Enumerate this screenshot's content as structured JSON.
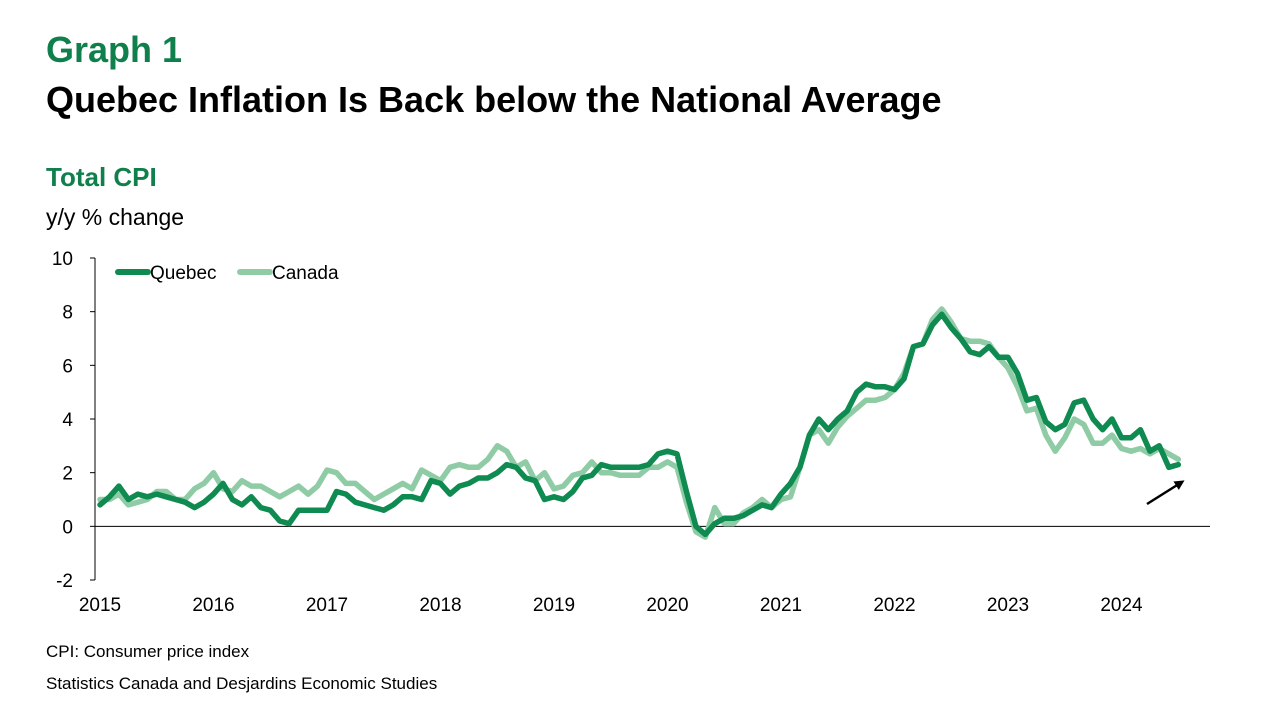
{
  "header": {
    "kicker": "Graph 1",
    "title": "Quebec Inflation Is Back below the National Average"
  },
  "chart_header": {
    "subtitle": "Total CPI",
    "units": "y/y % change"
  },
  "footer": {
    "note": "CPI: Consumer price index",
    "source": "Statistics Canada and Desjardins Economic Studies"
  },
  "colors": {
    "quebec": "#0f8a50",
    "canada": "#8fcca6",
    "title_green": "#0f7f4b",
    "arrow": "#000000"
  },
  "chart_data": {
    "type": "line",
    "title": "Total CPI",
    "ylabel": "y/y % change",
    "ylim": [
      -2,
      10
    ],
    "yticks": [
      -2,
      0,
      2,
      4,
      6,
      8,
      10
    ],
    "xlim": [
      2015,
      2024.75
    ],
    "xticks": [
      "2015",
      "2016",
      "2017",
      "2018",
      "2019",
      "2020",
      "2021",
      "2022",
      "2023",
      "2024"
    ],
    "grid": false,
    "legend": "top-left",
    "annotation": "upward arrow pointing to latest Quebec value",
    "series": [
      {
        "name": "Quebec",
        "start": "2015-01",
        "frequency": "monthly",
        "values": [
          0.8,
          1.1,
          1.5,
          1.0,
          1.2,
          1.1,
          1.2,
          1.1,
          1.0,
          0.9,
          0.7,
          0.9,
          1.2,
          1.6,
          1.0,
          0.8,
          1.1,
          0.7,
          0.6,
          0.2,
          0.1,
          0.6,
          0.6,
          0.6,
          0.6,
          1.3,
          1.2,
          0.9,
          0.8,
          0.7,
          0.6,
          0.8,
          1.1,
          1.1,
          1.0,
          1.7,
          1.6,
          1.2,
          1.5,
          1.6,
          1.8,
          1.8,
          2.0,
          2.3,
          2.2,
          1.8,
          1.7,
          1.0,
          1.1,
          1.0,
          1.3,
          1.8,
          1.9,
          2.3,
          2.2,
          2.2,
          2.2,
          2.2,
          2.3,
          2.7,
          2.8,
          2.7,
          1.3,
          0.0,
          -0.3,
          0.1,
          0.3,
          0.3,
          0.4,
          0.6,
          0.8,
          0.7,
          1.2,
          1.6,
          2.2,
          3.4,
          4.0,
          3.6,
          4.0,
          4.3,
          5.0,
          5.3,
          5.2,
          5.2,
          5.1,
          5.5,
          6.7,
          6.8,
          7.5,
          7.9,
          7.4,
          7.0,
          6.5,
          6.4,
          6.7,
          6.3,
          6.3,
          5.7,
          4.7,
          4.8,
          3.9,
          3.6,
          3.8,
          4.6,
          4.7,
          4.0,
          3.6,
          4.0,
          3.3,
          3.3,
          3.6,
          2.8,
          3.0,
          2.2,
          2.3
        ]
      },
      {
        "name": "Canada",
        "start": "2015-01",
        "frequency": "monthly",
        "values": [
          1.0,
          1.0,
          1.2,
          0.8,
          0.9,
          1.0,
          1.3,
          1.3,
          1.0,
          1.0,
          1.4,
          1.6,
          2.0,
          1.4,
          1.3,
          1.7,
          1.5,
          1.5,
          1.3,
          1.1,
          1.3,
          1.5,
          1.2,
          1.5,
          2.1,
          2.0,
          1.6,
          1.6,
          1.3,
          1.0,
          1.2,
          1.4,
          1.6,
          1.4,
          2.1,
          1.9,
          1.7,
          2.2,
          2.3,
          2.2,
          2.2,
          2.5,
          3.0,
          2.8,
          2.2,
          2.4,
          1.7,
          2.0,
          1.4,
          1.5,
          1.9,
          2.0,
          2.4,
          2.0,
          2.0,
          1.9,
          1.9,
          1.9,
          2.2,
          2.2,
          2.4,
          2.2,
          0.9,
          -0.2,
          -0.4,
          0.7,
          0.1,
          0.1,
          0.5,
          0.7,
          1.0,
          0.7,
          1.0,
          1.1,
          2.2,
          3.4,
          3.6,
          3.1,
          3.7,
          4.1,
          4.4,
          4.7,
          4.7,
          4.8,
          5.1,
          5.7,
          6.7,
          6.8,
          7.7,
          8.1,
          7.6,
          7.0,
          6.9,
          6.9,
          6.8,
          6.3,
          5.9,
          5.2,
          4.3,
          4.4,
          3.4,
          2.8,
          3.3,
          4.0,
          3.8,
          3.1,
          3.1,
          3.4,
          2.9,
          2.8,
          2.9,
          2.7,
          2.9,
          2.7,
          2.5
        ]
      }
    ]
  }
}
